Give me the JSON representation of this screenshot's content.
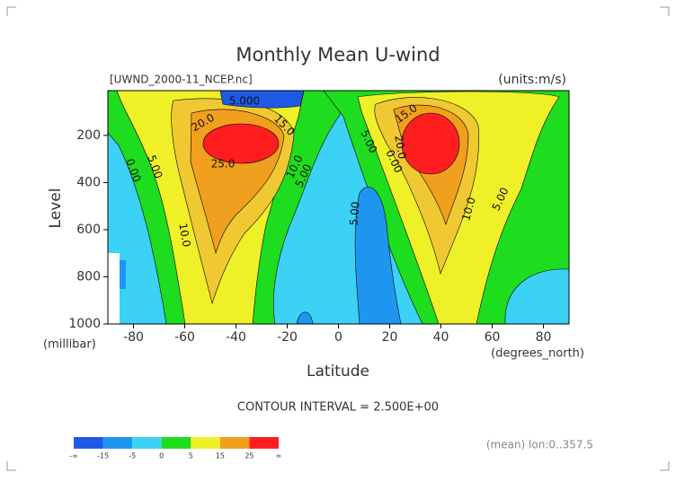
{
  "chart_data": {
    "type": "contour",
    "title": "Monthly Mean U-wind",
    "subtitle": "[UWND_2000-11_NCEP.nc]",
    "units": "(units:m/s)",
    "y_label": "Level",
    "y_unit": "(millibar)",
    "x_label": "Latitude",
    "x_unit": "(degrees_north)",
    "xlim": [
      -90,
      90
    ],
    "xticks": [
      -80,
      -60,
      -40,
      -20,
      0,
      20,
      40,
      60,
      80
    ],
    "ylim": [
      1000,
      10
    ],
    "yticks": [
      1000,
      800,
      600,
      400,
      200
    ],
    "contour_labels": [
      {
        "value": 5,
        "label": "5.000"
      },
      {
        "value": 20,
        "label": "20.0"
      },
      {
        "value": 15,
        "label": "15.0"
      },
      {
        "value": 25,
        "label": "25.0"
      },
      {
        "value": 0,
        "label": "0.00"
      },
      {
        "value": 5,
        "label": "5.00"
      },
      {
        "value": 10,
        "label": "10.0"
      },
      {
        "value": 5,
        "label": "5.00"
      },
      {
        "value": 10,
        "label": "10.0"
      },
      {
        "value": 5,
        "label": "5.00"
      },
      {
        "value": 5,
        "label": "5.00"
      },
      {
        "value": 0,
        "label": "0.00"
      },
      {
        "value": 15,
        "label": "15.0"
      },
      {
        "value": 20,
        "label": "20.0"
      },
      {
        "value": 10,
        "label": "10.0"
      },
      {
        "value": 5,
        "label": "5.00"
      }
    ],
    "contour_interval": "CONTOUR INTERVAL = 2.500E+00",
    "footnote": "(mean) lon:0..357.5",
    "colorbar": {
      "labels": [
        "-∞",
        -15,
        -5,
        0,
        5,
        15,
        25,
        "∞"
      ],
      "colors": [
        "#1e5ae6",
        "#1e96f0",
        "#3cd2f5",
        "#1edc1e",
        "#f0f028",
        "#f0a01e",
        "#ff1e1e"
      ]
    }
  }
}
